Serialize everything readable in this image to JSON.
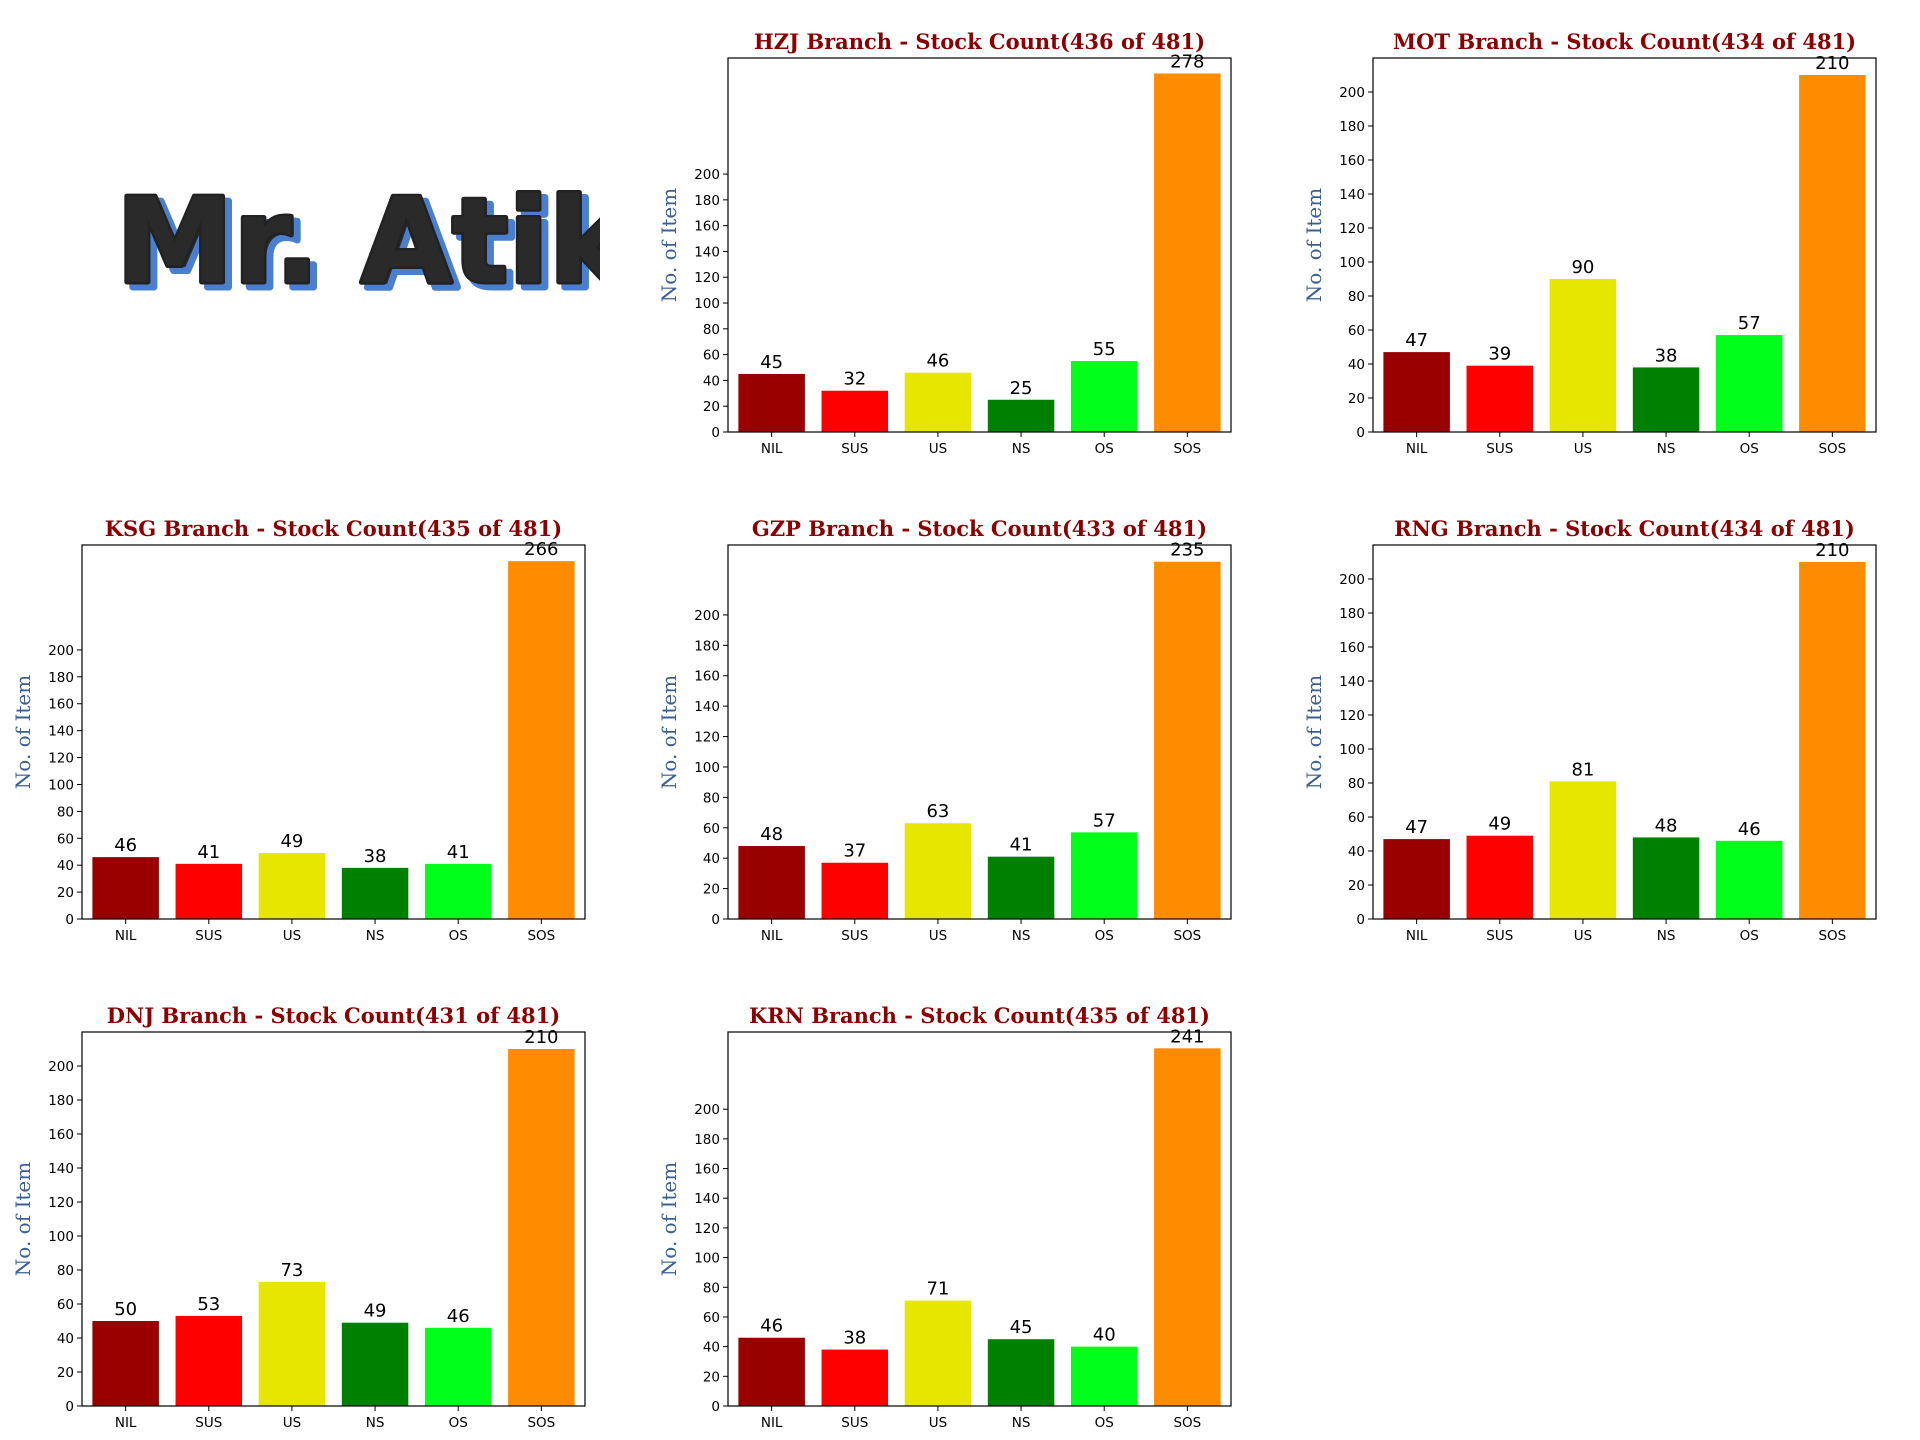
{
  "banner": {
    "text": "Mr. Atik"
  },
  "colors": {
    "NIL": "#990000",
    "SUS": "#ff0000",
    "US": "#e6e600",
    "NS": "#008000",
    "OS": "#00ff1a",
    "SOS": "#ff8c00",
    "title": "#8b0000",
    "ylabel": "#3b5f95"
  },
  "chart_data": [
    {
      "type": "bar",
      "title": "HZJ Branch - Stock Count(436 of 481)",
      "ylabel": "No. of Item",
      "categories": [
        "NIL",
        "SUS",
        "US",
        "NS",
        "OS",
        "SOS"
      ],
      "values": [
        45,
        32,
        46,
        25,
        55,
        278
      ],
      "ylim": [
        0,
        290
      ],
      "yticks": [
        0,
        20,
        40,
        60,
        80,
        100,
        120,
        140,
        160,
        180,
        200
      ],
      "grid": false
    },
    {
      "type": "bar",
      "title": "MOT Branch - Stock Count(434 of 481)",
      "ylabel": "No. of Item",
      "categories": [
        "NIL",
        "SUS",
        "US",
        "NS",
        "OS",
        "SOS"
      ],
      "values": [
        47,
        39,
        90,
        38,
        57,
        210
      ],
      "ylim": [
        0,
        220
      ],
      "yticks": [
        0,
        20,
        40,
        60,
        80,
        100,
        120,
        140,
        160,
        180,
        200
      ],
      "grid": false
    },
    {
      "type": "bar",
      "title": "KSG Branch - Stock Count(435 of 481)",
      "ylabel": "No. of Item",
      "categories": [
        "NIL",
        "SUS",
        "US",
        "NS",
        "OS",
        "SOS"
      ],
      "values": [
        46,
        41,
        49,
        38,
        41,
        266
      ],
      "ylim": [
        0,
        278
      ],
      "yticks": [
        0,
        20,
        40,
        60,
        80,
        100,
        120,
        140,
        160,
        180,
        200
      ],
      "grid": false
    },
    {
      "type": "bar",
      "title": "GZP Branch - Stock Count(433 of 481)",
      "ylabel": "No. of Item",
      "categories": [
        "NIL",
        "SUS",
        "US",
        "NS",
        "OS",
        "SOS"
      ],
      "values": [
        48,
        37,
        63,
        41,
        57,
        235
      ],
      "ylim": [
        0,
        246
      ],
      "yticks": [
        0,
        20,
        40,
        60,
        80,
        100,
        120,
        140,
        160,
        180,
        200
      ],
      "grid": false
    },
    {
      "type": "bar",
      "title": "RNG Branch - Stock Count(434 of 481)",
      "ylabel": "No. of Item",
      "categories": [
        "NIL",
        "SUS",
        "US",
        "NS",
        "OS",
        "SOS"
      ],
      "values": [
        47,
        49,
        81,
        48,
        46,
        210
      ],
      "ylim": [
        0,
        220
      ],
      "yticks": [
        0,
        20,
        40,
        60,
        80,
        100,
        120,
        140,
        160,
        180,
        200
      ],
      "grid": false
    },
    {
      "type": "bar",
      "title": "DNJ Branch - Stock Count(431 of 481)",
      "ylabel": "No. of Item",
      "categories": [
        "NIL",
        "SUS",
        "US",
        "NS",
        "OS",
        "SOS"
      ],
      "values": [
        50,
        53,
        73,
        49,
        46,
        210
      ],
      "ylim": [
        0,
        220
      ],
      "yticks": [
        0,
        20,
        40,
        60,
        80,
        100,
        120,
        140,
        160,
        180,
        200
      ],
      "grid": false
    },
    {
      "type": "bar",
      "title": "KRN Branch - Stock Count(435 of 481)",
      "ylabel": "No. of Item",
      "categories": [
        "NIL",
        "SUS",
        "US",
        "NS",
        "OS",
        "SOS"
      ],
      "values": [
        46,
        38,
        71,
        45,
        40,
        241
      ],
      "ylim": [
        0,
        252
      ],
      "yticks": [
        0,
        20,
        40,
        60,
        80,
        100,
        120,
        140,
        160,
        180,
        200
      ],
      "grid": false
    }
  ]
}
